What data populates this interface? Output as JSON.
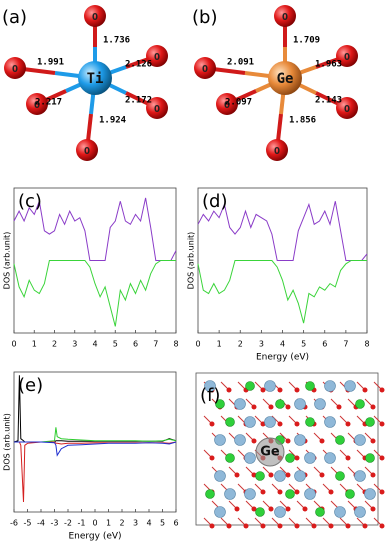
{
  "panels": {
    "a": {
      "label": "(a)",
      "center": "Ti",
      "ligand": "O",
      "bonds": [
        1.736,
        1.991,
        2.126,
        2.217,
        2.172,
        1.924
      ]
    },
    "b": {
      "label": "(b)",
      "center": "Ge",
      "ligand": "O",
      "bonds": [
        1.709,
        2.091,
        1.963,
        2.097,
        2.143,
        1.856
      ]
    },
    "f": {
      "label": "(f)",
      "atom": "Ge"
    }
  },
  "chart_data": [
    {
      "type": "line",
      "label": "(c)",
      "ylabel": "DOS (arb.unit)",
      "x": [
        0,
        0.25,
        0.5,
        0.75,
        1,
        1.25,
        1.5,
        1.75,
        2,
        2.25,
        2.5,
        2.75,
        3,
        3.25,
        3.5,
        3.75,
        4,
        4.25,
        4.5,
        4.75,
        5,
        5.25,
        5.5,
        5.75,
        6,
        6.25,
        6.5,
        6.75,
        7,
        7.25,
        7.5,
        7.75,
        8
      ],
      "series": [
        {
          "color": "#8a3cc8",
          "values": [
            0.6,
            0.75,
            0.6,
            0.8,
            0.7,
            0.9,
            0.45,
            0.4,
            0.45,
            0.7,
            0.55,
            0.75,
            0.6,
            0.65,
            0.45,
            0,
            0,
            0,
            0,
            0.5,
            0.6,
            0.9,
            0.6,
            0.55,
            0.7,
            0.6,
            0.95,
            0.5,
            0,
            0,
            0,
            0,
            0.15
          ]
        },
        {
          "color": "#3ad43a",
          "values": [
            -0.05,
            -0.4,
            -0.55,
            -0.3,
            -0.45,
            -0.5,
            -0.35,
            0,
            0,
            0,
            0,
            0,
            0,
            0,
            0,
            -0.1,
            -0.35,
            -0.55,
            -0.4,
            -0.7,
            -1.0,
            -0.45,
            -0.6,
            -0.35,
            -0.5,
            -0.3,
            -0.45,
            -0.2,
            -0.05,
            0,
            0,
            0,
            0
          ]
        }
      ],
      "xlim": [
        0,
        8
      ],
      "ylim": [
        -1.1,
        1.1
      ],
      "xticks": [
        0,
        1,
        2,
        3,
        4,
        5,
        6,
        7,
        8
      ]
    },
    {
      "type": "line",
      "label": "(d)",
      "ylabel": "DOS (arb.unit)",
      "xlabel": "Energy (eV)",
      "x": [
        0,
        0.25,
        0.5,
        0.75,
        1,
        1.25,
        1.5,
        1.75,
        2,
        2.25,
        2.5,
        2.75,
        3,
        3.25,
        3.5,
        3.75,
        4,
        4.25,
        4.5,
        4.75,
        5,
        5.25,
        5.5,
        5.75,
        6,
        6.25,
        6.5,
        6.75,
        7,
        7.25,
        7.5,
        7.75,
        8
      ],
      "series": [
        {
          "color": "#8a3cc8",
          "values": [
            0.55,
            0.7,
            0.6,
            0.75,
            0.65,
            0.85,
            0.5,
            0.4,
            0.5,
            0.75,
            0.5,
            0.7,
            0.65,
            0.6,
            0.4,
            0,
            0,
            0,
            0,
            0.45,
            0.65,
            0.85,
            0.55,
            0.6,
            0.75,
            0.55,
            0.9,
            0.45,
            0,
            0,
            0,
            0,
            0.1
          ]
        },
        {
          "color": "#3ad43a",
          "values": [
            -0.05,
            -0.45,
            -0.5,
            -0.35,
            -0.5,
            -0.45,
            -0.3,
            0,
            0,
            0,
            0,
            0,
            0,
            0,
            0,
            -0.1,
            -0.3,
            -0.6,
            -0.45,
            -0.65,
            -0.95,
            -0.5,
            -0.55,
            -0.4,
            -0.45,
            -0.35,
            -0.4,
            -0.15,
            -0.05,
            0,
            0,
            0,
            0
          ]
        }
      ],
      "xlim": [
        0,
        8
      ],
      "ylim": [
        -1.1,
        1.1
      ],
      "xticks": [
        0,
        1,
        2,
        3,
        4,
        5,
        6,
        7,
        8
      ]
    },
    {
      "type": "line",
      "label": "(e)",
      "ylabel": "DOS (arb.unit)",
      "xlabel": "Energy (eV)",
      "x": [
        -6,
        -5.7,
        -5.6,
        -5.5,
        -5.3,
        -5.2,
        -5,
        -4,
        -3,
        -2.9,
        -2.8,
        -2.5,
        -2,
        -1,
        0,
        1,
        2,
        3,
        4,
        5,
        5.5,
        6
      ],
      "series": [
        {
          "color": "#000000",
          "values": [
            0,
            0.02,
            1,
            0.05,
            0.02,
            0,
            0,
            0,
            0,
            0.02,
            0.02,
            0.02,
            0.01,
            0.01,
            0.01,
            0.01,
            0.01,
            0.01,
            0.01,
            0.01,
            0.05,
            0.02
          ]
        },
        {
          "color": "#d42020",
          "values": [
            0,
            0,
            0,
            -0.05,
            -0.9,
            -0.05,
            -0.02,
            0,
            0,
            -0.02,
            -0.02,
            -0.03,
            -0.02,
            -0.02,
            -0.01,
            -0.01,
            -0.01,
            -0.01,
            -0.01,
            -0.01,
            -0.02,
            0
          ]
        },
        {
          "color": "#2ecc2e",
          "values": [
            0,
            0,
            0,
            0,
            0,
            0,
            0,
            0,
            0.02,
            0.22,
            0.08,
            0.05,
            0.04,
            0.03,
            0.02,
            0.02,
            0.02,
            0.02,
            0.01,
            0.02,
            0.04,
            0.02
          ]
        },
        {
          "color": "#1f2fd0",
          "values": [
            0,
            0,
            0,
            0,
            0,
            0,
            0,
            0,
            -0.01,
            -0.05,
            -0.2,
            -0.1,
            -0.05,
            -0.04,
            -0.03,
            -0.02,
            -0.02,
            -0.02,
            -0.01,
            -0.02,
            -0.03,
            0
          ]
        }
      ],
      "xlim": [
        -6,
        6
      ],
      "ylim": [
        -1.05,
        1.05
      ],
      "xticks": [
        -6,
        -5,
        -4,
        -3,
        -2,
        -1,
        0,
        1,
        2,
        3,
        4,
        5,
        6
      ]
    }
  ]
}
